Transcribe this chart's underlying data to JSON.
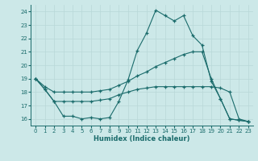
{
  "xlabel": "Humidex (Indice chaleur)",
  "xlim": [
    -0.5,
    23.5
  ],
  "ylim": [
    15.5,
    24.5
  ],
  "yticks": [
    16,
    17,
    18,
    19,
    20,
    21,
    22,
    23,
    24
  ],
  "xticks": [
    0,
    1,
    2,
    3,
    4,
    5,
    6,
    7,
    8,
    9,
    10,
    11,
    12,
    13,
    14,
    15,
    16,
    17,
    18,
    19,
    20,
    21,
    22,
    23
  ],
  "bg_color": "#cce8e8",
  "line_color": "#1a6b6b",
  "grid_color": "#b8d8d8",
  "line1_x": [
    0,
    1,
    2,
    3,
    4,
    5,
    6,
    7,
    8,
    9,
    10,
    11,
    12,
    13,
    14,
    15,
    16,
    17,
    18,
    19,
    20,
    21,
    22,
    23
  ],
  "line1_y": [
    19.0,
    18.2,
    17.3,
    16.2,
    16.2,
    16.0,
    16.1,
    16.0,
    16.1,
    17.3,
    18.9,
    21.1,
    22.4,
    24.1,
    23.7,
    23.3,
    23.7,
    22.2,
    21.5,
    18.8,
    17.5,
    16.0,
    15.9,
    15.8
  ],
  "line2_x": [
    0,
    1,
    2,
    3,
    4,
    5,
    6,
    7,
    8,
    9,
    10,
    11,
    12,
    13,
    14,
    15,
    16,
    17,
    18,
    19,
    20,
    21,
    22,
    23
  ],
  "line2_y": [
    19.0,
    18.4,
    18.0,
    18.0,
    18.0,
    18.0,
    18.0,
    18.1,
    18.2,
    18.5,
    18.8,
    19.2,
    19.5,
    19.9,
    20.2,
    20.5,
    20.8,
    21.0,
    21.0,
    19.0,
    17.5,
    16.0,
    15.9,
    15.8
  ],
  "line3_x": [
    0,
    1,
    2,
    3,
    4,
    5,
    6,
    7,
    8,
    9,
    10,
    11,
    12,
    13,
    14,
    15,
    16,
    17,
    18,
    19,
    20,
    21,
    22,
    23
  ],
  "line3_y": [
    19.0,
    18.2,
    17.3,
    17.3,
    17.3,
    17.3,
    17.3,
    17.4,
    17.5,
    17.8,
    18.0,
    18.2,
    18.3,
    18.4,
    18.4,
    18.4,
    18.4,
    18.4,
    18.4,
    18.4,
    18.3,
    18.0,
    16.0,
    15.8
  ]
}
